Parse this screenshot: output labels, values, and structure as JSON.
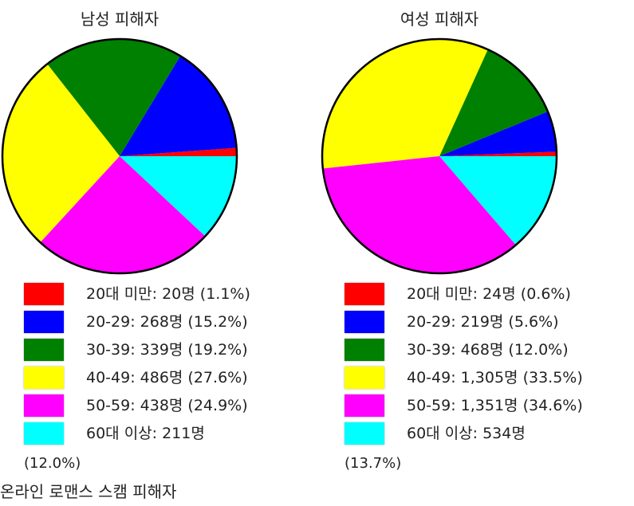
{
  "chart_data": [
    {
      "type": "pie",
      "title": "남성 피해자",
      "categories": [
        "20대 미만",
        "20-29",
        "30-39",
        "40-49",
        "50-59",
        "60대 이상"
      ],
      "values": [
        20,
        268,
        339,
        486,
        438,
        211
      ],
      "colors": [
        "#ff0000",
        "#0000ff",
        "#008000",
        "#ffff00",
        "#ff00ff",
        "#00ffff"
      ],
      "legend": [
        {
          "label": "20대 미만: 20명 (1.1%)"
        },
        {
          "label": "20-29: 268명 (15.2%)"
        },
        {
          "label": "30-39: 339명 (19.2%)"
        },
        {
          "label": "40-49: 486명 (27.6%)"
        },
        {
          "label": "50-59: 438명 (24.9%)"
        },
        {
          "label": "60대 이상: 211명",
          "pct": "(12.0%)"
        }
      ],
      "legend_placement": "bottom"
    },
    {
      "type": "pie",
      "title": "여성 피해자",
      "categories": [
        "20대 미만",
        "20-29",
        "30-39",
        "40-49",
        "50-59",
        "60대 이상"
      ],
      "values": [
        24,
        219,
        468,
        1305,
        1351,
        534
      ],
      "colors": [
        "#ff0000",
        "#0000ff",
        "#008000",
        "#ffff00",
        "#ff00ff",
        "#00ffff"
      ],
      "legend": [
        {
          "label": "20대 미만: 24명 (0.6%)"
        },
        {
          "label": "20-29: 219명 (5.6%)"
        },
        {
          "label": "30-39: 468명 (12.0%)"
        },
        {
          "label": "40-49: 1,305명 (33.5%)"
        },
        {
          "label": "50-59: 1,351명 (34.6%)"
        },
        {
          "label": "60대 이상: 534명",
          "pct": "(13.7%)"
        }
      ],
      "legend_placement": "bottom"
    }
  ],
  "footer": "온라인 로맨스 스캠 피해자"
}
